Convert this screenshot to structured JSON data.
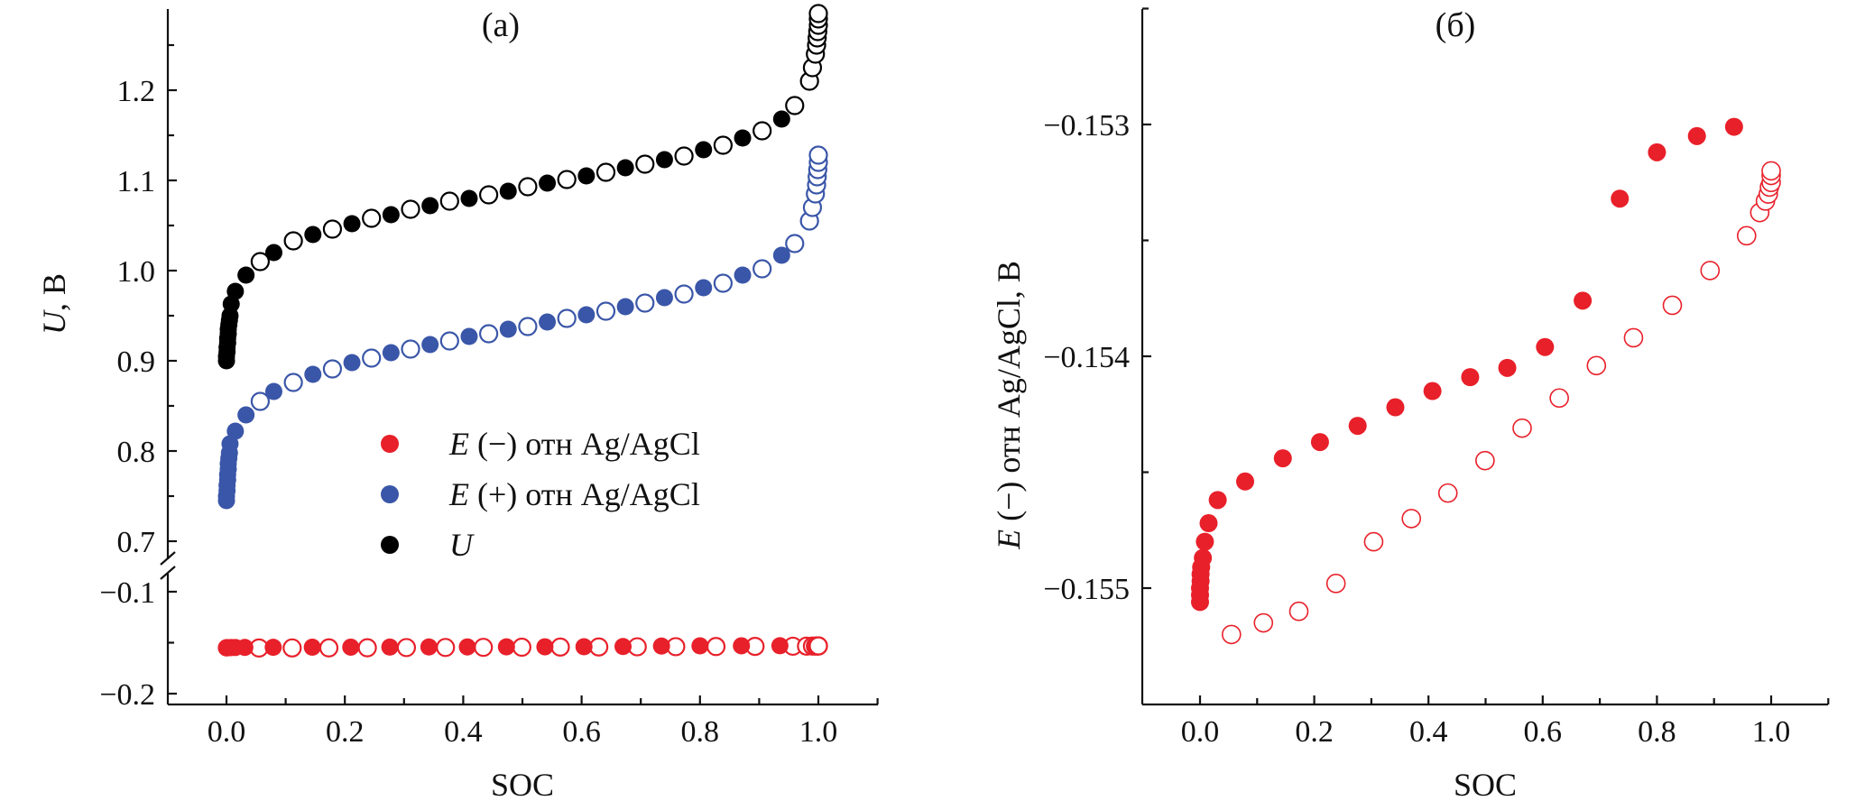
{
  "colors": {
    "neg": "#e8202a",
    "pos": "#3a56a8",
    "u": "#000000"
  },
  "chart_data": [
    {
      "type": "scatter",
      "title": "(a)",
      "xlabel": "SOC",
      "ylabel": {
        "symbol": "U",
        "text": ", В"
      },
      "xlim": [
        -0.1,
        1.1
      ],
      "ylim_upper": [
        0.68,
        1.29
      ],
      "ylim_lower": [
        -0.21,
        -0.08
      ],
      "axis_break": true,
      "x_ticks": [
        {
          "v": 0,
          "label": "0.0"
        },
        {
          "v": 0.2,
          "label": "0.2"
        },
        {
          "v": 0.4,
          "label": "0.4"
        },
        {
          "v": 0.6,
          "label": "0.6"
        },
        {
          "v": 0.8,
          "label": "0.8"
        },
        {
          "v": 1.0,
          "label": "1.0"
        }
      ],
      "y_ticks_upper": [
        {
          "v": 0.7,
          "label": "0.7"
        },
        {
          "v": 0.8,
          "label": "0.8"
        },
        {
          "v": 0.9,
          "label": "0.9"
        },
        {
          "v": 1.0,
          "label": "1.0"
        },
        {
          "v": 1.1,
          "label": "1.1"
        },
        {
          "v": 1.2,
          "label": "1.2"
        }
      ],
      "y_ticks_lower": [
        {
          "v": -0.1,
          "label": "−0.1"
        },
        {
          "v": -0.2,
          "label": "−0.2"
        }
      ],
      "legend_position": "center",
      "legend": [
        {
          "symbol": "E",
          "text": "(−) отн Ag/AgCl",
          "color_key": "neg"
        },
        {
          "symbol": "E",
          "text": "(+) отн Ag/AgCl",
          "color_key": "pos"
        },
        {
          "symbol": "U",
          "text": "",
          "color_key": "u"
        }
      ],
      "series": [
        {
          "name": "U",
          "color_key": "u",
          "charge": [
            [
              0,
              0.9
            ],
            [
              0,
              0.905
            ],
            [
              0.001,
              0.91
            ],
            [
              0.001,
              0.915
            ],
            [
              0.002,
              0.92
            ],
            [
              0.002,
              0.925
            ],
            [
              0.003,
              0.93
            ],
            [
              0.003,
              0.935
            ],
            [
              0.004,
              0.94
            ],
            [
              0.005,
              0.945
            ],
            [
              0.006,
              0.95
            ],
            [
              0.008,
              0.963
            ],
            [
              0.015,
              0.977
            ],
            [
              0.033,
              0.995
            ],
            [
              0.08,
              1.02
            ],
            [
              0.146,
              1.04
            ],
            [
              0.212,
              1.052
            ],
            [
              0.278,
              1.062
            ],
            [
              0.344,
              1.072
            ],
            [
              0.41,
              1.08
            ],
            [
              0.476,
              1.088
            ],
            [
              0.542,
              1.097
            ],
            [
              0.608,
              1.105
            ],
            [
              0.674,
              1.114
            ],
            [
              0.74,
              1.123
            ],
            [
              0.806,
              1.134
            ],
            [
              0.872,
              1.147
            ],
            [
              0.938,
              1.168
            ]
          ],
          "discharge": [
            [
              0.057,
              1.01
            ],
            [
              0.113,
              1.033
            ],
            [
              0.179,
              1.046
            ],
            [
              0.245,
              1.058
            ],
            [
              0.311,
              1.068
            ],
            [
              0.377,
              1.077
            ],
            [
              0.443,
              1.084
            ],
            [
              0.509,
              1.093
            ],
            [
              0.575,
              1.101
            ],
            [
              0.641,
              1.109
            ],
            [
              0.707,
              1.118
            ],
            [
              0.773,
              1.127
            ],
            [
              0.839,
              1.139
            ],
            [
              0.905,
              1.155
            ],
            [
              0.96,
              1.183
            ],
            [
              0.985,
              1.21
            ],
            [
              0.99,
              1.225
            ],
            [
              0.995,
              1.24
            ],
            [
              0.997,
              1.25
            ],
            [
              0.998,
              1.258
            ],
            [
              0.999,
              1.265
            ],
            [
              1.0,
              1.272
            ],
            [
              1.0,
              1.279
            ],
            [
              1.0,
              1.285
            ]
          ]
        },
        {
          "name": "E(+) отн Ag/AgCl",
          "color_key": "pos",
          "charge": [
            [
              0,
              0.745
            ],
            [
              0,
              0.75
            ],
            [
              0.001,
              0.756
            ],
            [
              0.001,
              0.762
            ],
            [
              0.002,
              0.768
            ],
            [
              0.002,
              0.774
            ],
            [
              0.003,
              0.78
            ],
            [
              0.003,
              0.786
            ],
            [
              0.004,
              0.792
            ],
            [
              0.005,
              0.798
            ],
            [
              0.006,
              0.808
            ],
            [
              0.015,
              0.822
            ],
            [
              0.033,
              0.84
            ],
            [
              0.08,
              0.866
            ],
            [
              0.146,
              0.885
            ],
            [
              0.212,
              0.898
            ],
            [
              0.278,
              0.909
            ],
            [
              0.344,
              0.918
            ],
            [
              0.41,
              0.927
            ],
            [
              0.476,
              0.935
            ],
            [
              0.542,
              0.943
            ],
            [
              0.608,
              0.951
            ],
            [
              0.674,
              0.96
            ],
            [
              0.74,
              0.97
            ],
            [
              0.806,
              0.981
            ],
            [
              0.872,
              0.995
            ],
            [
              0.938,
              1.017
            ]
          ],
          "discharge": [
            [
              0.057,
              0.855
            ],
            [
              0.113,
              0.876
            ],
            [
              0.179,
              0.891
            ],
            [
              0.245,
              0.903
            ],
            [
              0.311,
              0.913
            ],
            [
              0.377,
              0.922
            ],
            [
              0.443,
              0.93
            ],
            [
              0.509,
              0.938
            ],
            [
              0.575,
              0.947
            ],
            [
              0.641,
              0.955
            ],
            [
              0.707,
              0.964
            ],
            [
              0.773,
              0.974
            ],
            [
              0.839,
              0.986
            ],
            [
              0.905,
              1.002
            ],
            [
              0.96,
              1.03
            ],
            [
              0.985,
              1.055
            ],
            [
              0.99,
              1.07
            ],
            [
              0.995,
              1.085
            ],
            [
              0.997,
              1.095
            ],
            [
              0.998,
              1.104
            ],
            [
              0.999,
              1.112
            ],
            [
              1.0,
              1.12
            ],
            [
              1.0,
              1.128
            ]
          ]
        },
        {
          "name": "E(−) отн Ag/AgCl",
          "color_key": "neg",
          "same_as_panel_b": true
        }
      ]
    },
    {
      "type": "scatter",
      "title": "(б)",
      "xlabel": "SOC",
      "ylabel": {
        "symbol": "E",
        "text": " (−) отн Ag/AgCl, В"
      },
      "xlim": [
        -0.1,
        1.1
      ],
      "ylim": [
        -0.1555,
        -0.15251
      ],
      "x_ticks": [
        {
          "v": 0,
          "label": "0.0"
        },
        {
          "v": 0.2,
          "label": "0.2"
        },
        {
          "v": 0.4,
          "label": "0.4"
        },
        {
          "v": 0.6,
          "label": "0.6"
        },
        {
          "v": 0.8,
          "label": "0.8"
        },
        {
          "v": 1.0,
          "label": "1.0"
        }
      ],
      "y_ticks": [
        {
          "v": -0.153,
          "label": "−0.153"
        },
        {
          "v": -0.154,
          "label": "−0.154"
        },
        {
          "v": -0.155,
          "label": "−0.155"
        }
      ],
      "series": [
        {
          "name": "E(−) отн Ag/AgCl",
          "color_key": "neg",
          "charge": [
            [
              0,
              -0.15506
            ],
            [
              0,
              -0.15503
            ],
            [
              0,
              -0.155
            ],
            [
              0.001,
              -0.15497
            ],
            [
              0.001,
              -0.15494
            ],
            [
              0.002,
              -0.15491
            ],
            [
              0.005,
              -0.15487
            ],
            [
              0.0085,
              -0.1548
            ],
            [
              0.015,
              -0.15472
            ],
            [
              0.031,
              -0.15462
            ],
            [
              0.079,
              -0.15454
            ],
            [
              0.145,
              -0.15444
            ],
            [
              0.21,
              -0.15437
            ],
            [
              0.276,
              -0.1543
            ],
            [
              0.342,
              -0.15422
            ],
            [
              0.407,
              -0.15415
            ],
            [
              0.473,
              -0.15409
            ],
            [
              0.538,
              -0.15405
            ],
            [
              0.604,
              -0.15396
            ],
            [
              0.67,
              -0.15376
            ],
            [
              0.735,
              -0.15332
            ],
            [
              0.8,
              -0.15312
            ],
            [
              0.87,
              -0.15305
            ],
            [
              0.935,
              -0.15301
            ]
          ],
          "discharge": [
            [
              0.055,
              -0.1552
            ],
            [
              0.111,
              -0.15515
            ],
            [
              0.173,
              -0.1551
            ],
            [
              0.238,
              -0.15498
            ],
            [
              0.304,
              -0.1548
            ],
            [
              0.37,
              -0.1547
            ],
            [
              0.434,
              -0.15459
            ],
            [
              0.499,
              -0.15445
            ],
            [
              0.564,
              -0.15431
            ],
            [
              0.629,
              -0.15418
            ],
            [
              0.694,
              -0.15404
            ],
            [
              0.759,
              -0.15392
            ],
            [
              0.827,
              -0.15378
            ],
            [
              0.893,
              -0.15363
            ],
            [
              0.957,
              -0.15348
            ],
            [
              0.98,
              -0.15338
            ],
            [
              0.99,
              -0.15333
            ],
            [
              0.995,
              -0.1533
            ],
            [
              0.997,
              -0.15327
            ],
            [
              1.0,
              -0.15325
            ],
            [
              1.0,
              -0.15322
            ],
            [
              1.0,
              -0.1532
            ]
          ]
        }
      ]
    }
  ]
}
